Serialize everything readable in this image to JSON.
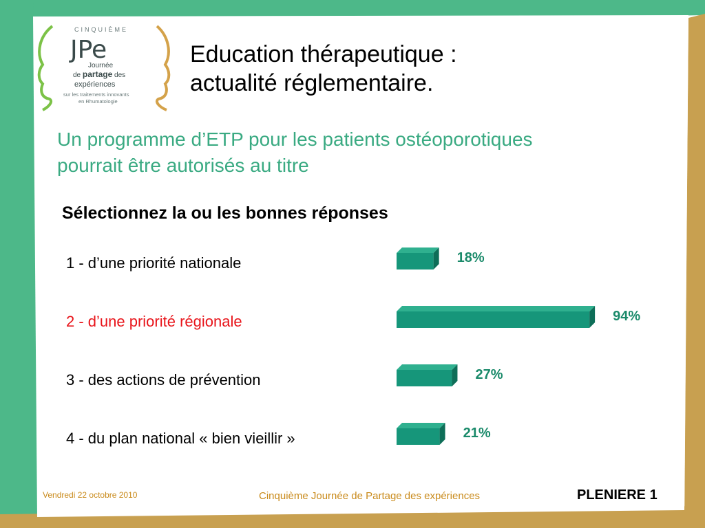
{
  "logo": {
    "top_text": "CINQUIÈME",
    "brand": "JPe",
    "line1": "Journée",
    "line2_a": "de",
    "line2_b": "partage",
    "line2_c": "des",
    "line3": "expériences",
    "line4": "sur les traitements innovants",
    "line5": "en Rhumatologie"
  },
  "title_line1": "Education thérapeutique :",
  "title_line2": "actualité réglementaire.",
  "subtitle_line1": "Un programme d’ETP pour les patients ostéoporotiques",
  "subtitle_line2": "pourrait être autorisés au titre",
  "instruction": "Sélectionnez la ou les bonnes réponses",
  "options": [
    {
      "label": "1 - d’une priorité nationale",
      "correct": false
    },
    {
      "label": "2 - d’une priorité régionale",
      "correct": true
    },
    {
      "label": "3 - des actions de prévention",
      "correct": false
    },
    {
      "label": "4 - du plan national «  bien vieillir »",
      "correct": false
    }
  ],
  "chart_data": {
    "type": "bar",
    "orientation": "horizontal",
    "categories": [
      "1 - d’une priorité nationale",
      "2 - d’une priorité régionale",
      "3 - des actions de prévention",
      "4 - du plan national «  bien vieillir »"
    ],
    "values": [
      18,
      94,
      27,
      21
    ],
    "value_labels": [
      "18%",
      "94%",
      "27%",
      "21%"
    ],
    "xlim": [
      0,
      100
    ],
    "grid": false,
    "colors": {
      "bar": "#16967a",
      "bar_top": "#2fb08f",
      "bar_side": "#0e6e58",
      "label": "#1a8a6a"
    }
  },
  "colors": {
    "border_green": "#4db889",
    "border_gold": "#c8a050",
    "subtitle": "#3aaa82",
    "correct": "#e8141a",
    "footer": "#c98a1a"
  },
  "footer": {
    "date": "Vendredi 22 octobre 2010",
    "center": "Cinquième Journée de Partage des expériences",
    "right": "PLENIERE 1"
  }
}
